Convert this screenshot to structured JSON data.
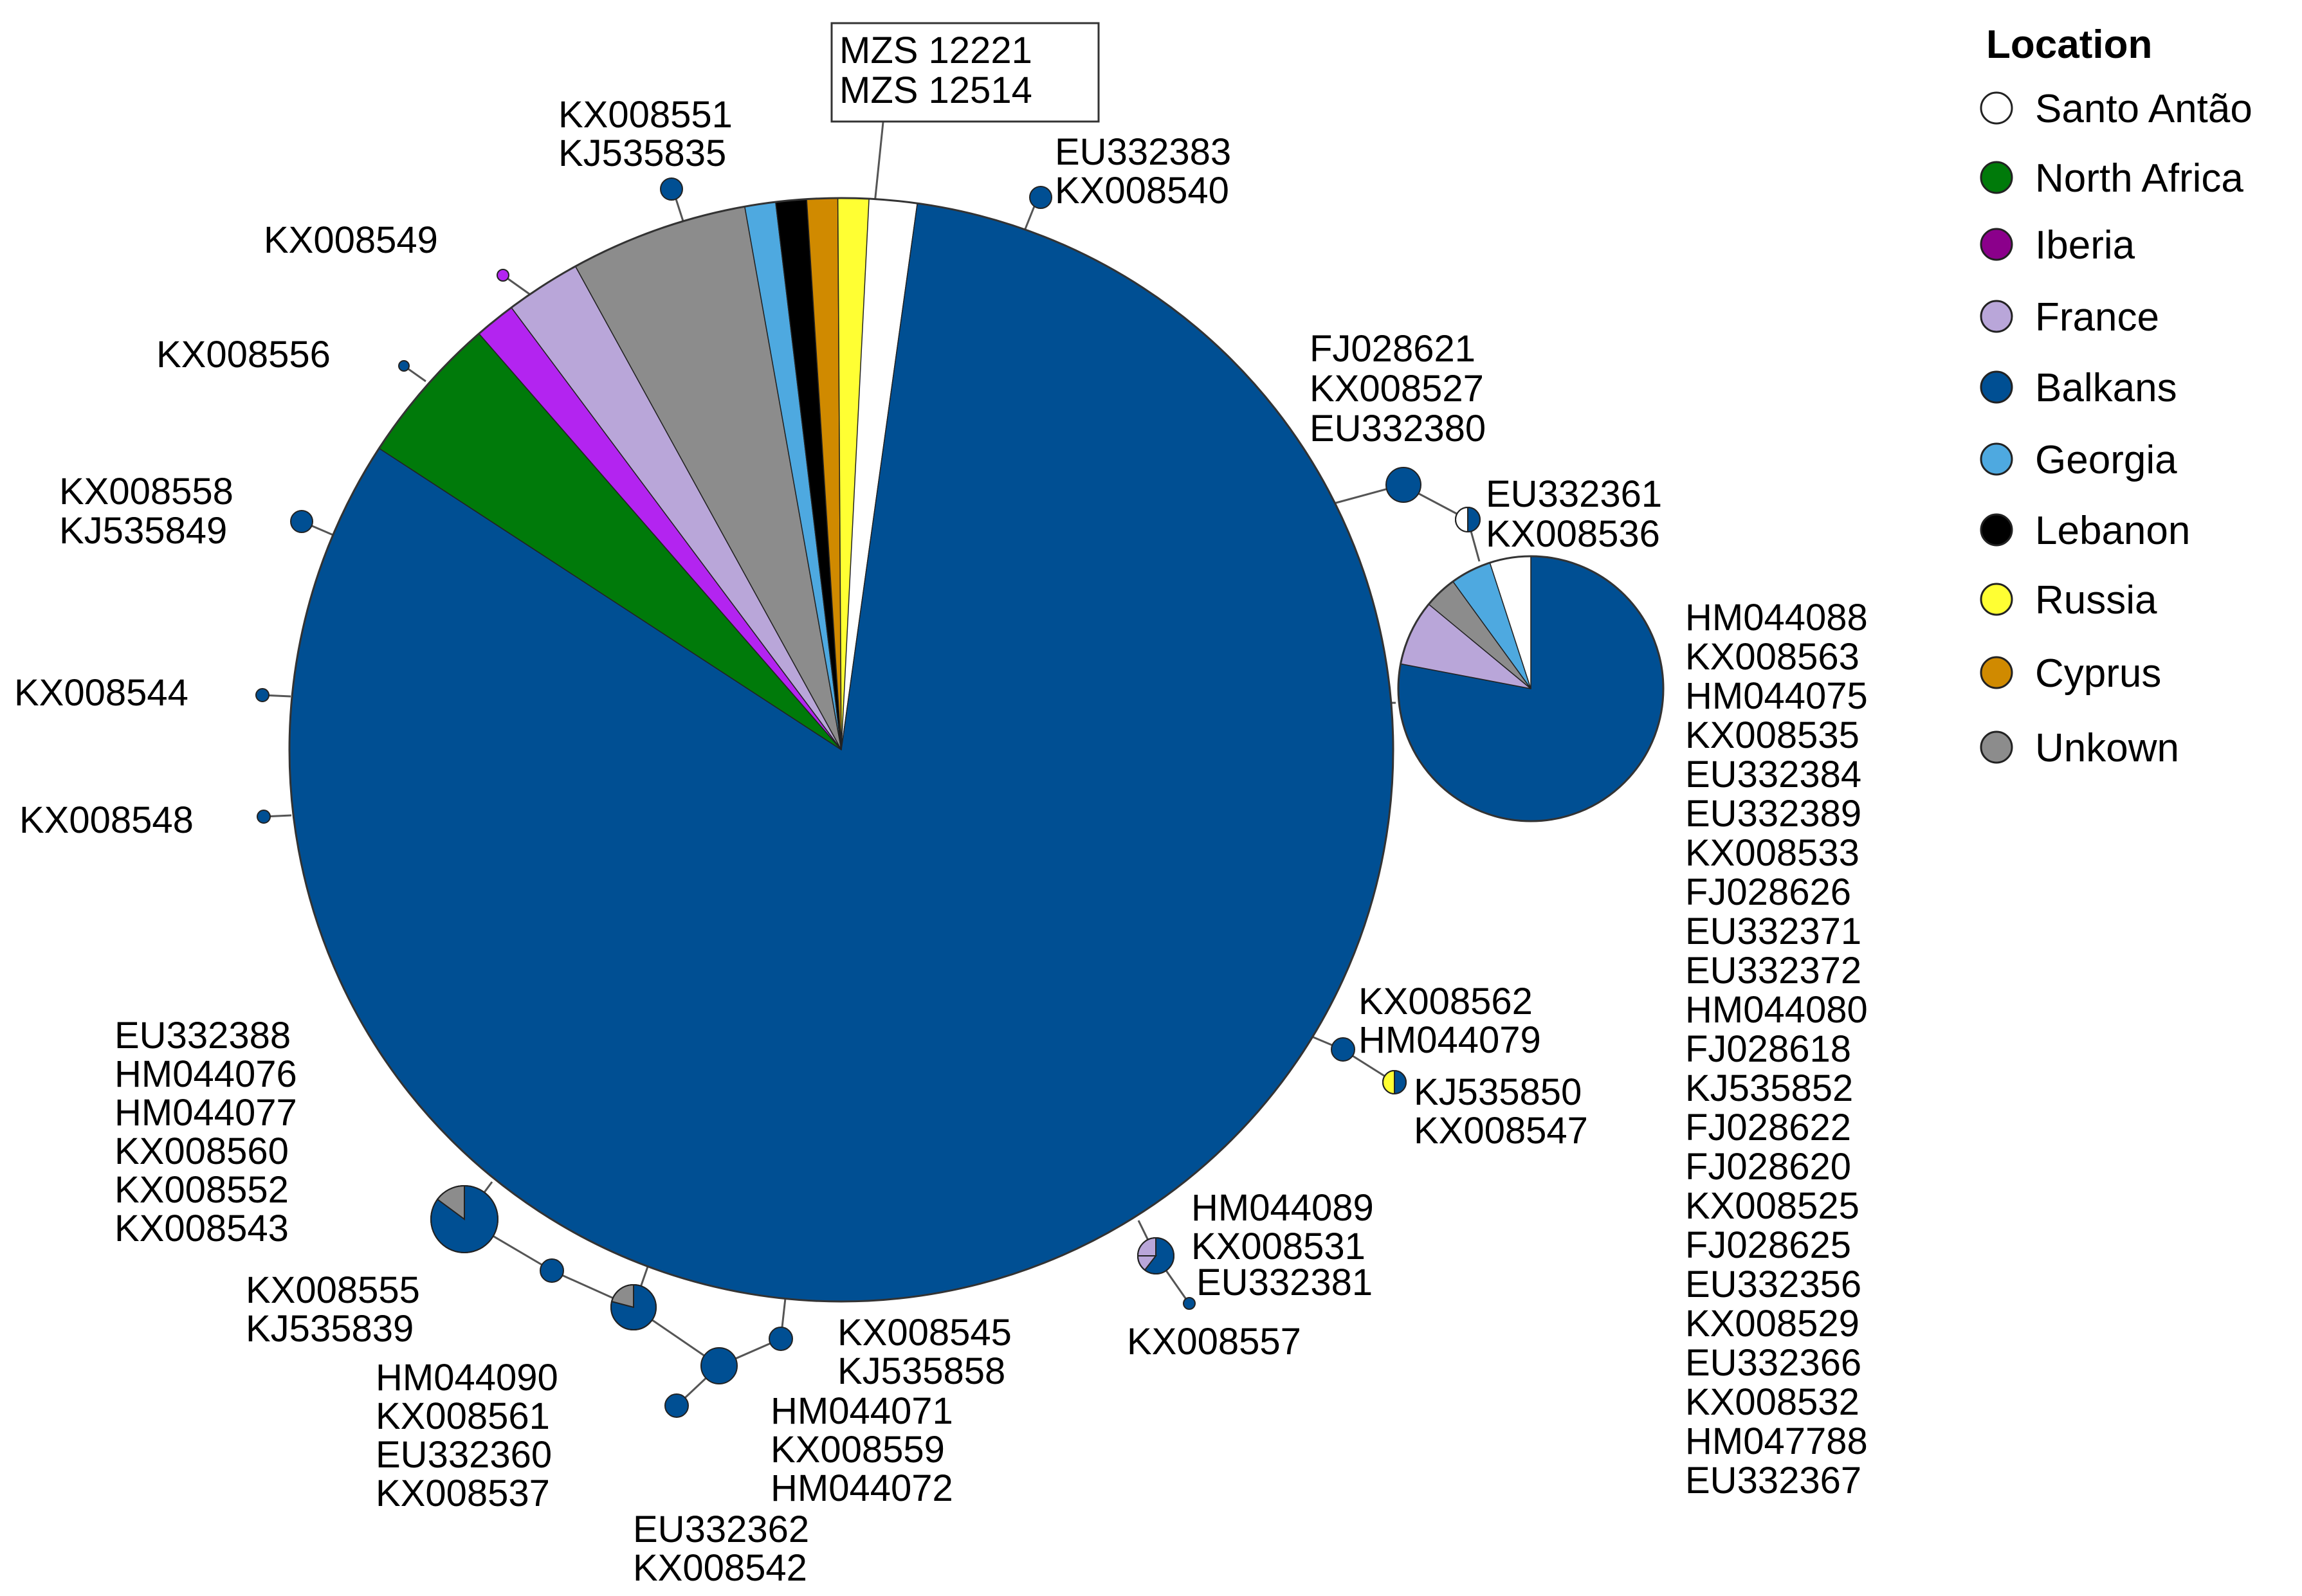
{
  "legend": {
    "title": "Location",
    "items": [
      {
        "key": "santo_antao",
        "label": "Santo Antão",
        "color": "#ffffff"
      },
      {
        "key": "north_africa",
        "label": "North Africa",
        "color": "#007a0a"
      },
      {
        "key": "iberia",
        "label": "Iberia",
        "color": "#8b008b"
      },
      {
        "key": "france",
        "label": "France",
        "color": "#b9a6d9"
      },
      {
        "key": "balkans",
        "label": "Balkans",
        "color": "#004f93"
      },
      {
        "key": "georgia",
        "label": "Georgia",
        "color": "#4ea9e0"
      },
      {
        "key": "lebanon",
        "label": "Lebanon",
        "color": "#000000"
      },
      {
        "key": "russia",
        "label": "Russia",
        "color": "#ffff33"
      },
      {
        "key": "cyprus",
        "label": "Cyprus",
        "color": "#d08a00"
      },
      {
        "key": "unknown",
        "label": "Unkown",
        "color": "#8c8c8c"
      }
    ]
  },
  "pie_colors": {
    "santo_antao": "#ffffff",
    "north_africa": "#007a0a",
    "iberia_slice": "#b324f0",
    "france": "#b9a6d9",
    "balkans": "#004f93",
    "georgia": "#4ea9e0",
    "lebanon": "#000000",
    "russia": "#ffff33",
    "cyprus": "#d08a00",
    "unknown": "#8c8c8c"
  },
  "main_haplotype": {
    "boxed_label": [
      "MZS 12221",
      "MZS 12514"
    ],
    "composition": [
      {
        "location": "santo_antao",
        "fraction": 0.022
      },
      {
        "location": "balkans",
        "fraction": 0.82
      },
      {
        "location": "north_africa",
        "fraction": 0.044
      },
      {
        "location": "iberia_slice",
        "fraction": 0.012
      },
      {
        "location": "france",
        "fraction": 0.022
      },
      {
        "location": "unknown",
        "fraction": 0.052
      },
      {
        "location": "georgia",
        "fraction": 0.009
      },
      {
        "location": "lebanon",
        "fraction": 0.009
      },
      {
        "location": "cyprus",
        "fraction": 0.009
      },
      {
        "location": "russia",
        "fraction": 0.009
      }
    ]
  },
  "second_haplotype": {
    "labels": [
      "HM044088",
      "KX008563",
      "HM044075",
      "KX008535",
      "EU332384",
      "EU332389",
      "KX008533",
      "FJ028626",
      "EU332371",
      "EU332372",
      "HM044080",
      "FJ028618",
      "KJ535852",
      "FJ028622",
      "FJ028620",
      "KX008525",
      "FJ028625",
      "EU332356",
      "KX008529",
      "EU332366",
      "KX008532",
      "HM047788",
      "EU332367"
    ],
    "composition": [
      {
        "location": "balkans",
        "fraction": 0.78
      },
      {
        "location": "france",
        "fraction": 0.08
      },
      {
        "location": "unknown",
        "fraction": 0.04
      },
      {
        "location": "georgia",
        "fraction": 0.05
      },
      {
        "location": "santo_antao",
        "fraction": 0.05
      }
    ]
  },
  "haplotype_labels": {
    "kx008551": [
      "KX008551",
      "KJ535835"
    ],
    "eu332383": [
      "EU332383",
      "KX008540"
    ],
    "kx008549": [
      "KX008549"
    ],
    "kx008556": [
      "KX008556"
    ],
    "kx008558": [
      "KX008558",
      "KJ535849"
    ],
    "kx008544": [
      "KX008544"
    ],
    "kx008548": [
      "KX008548"
    ],
    "fj028621": [
      "FJ028621",
      "KX008527",
      "EU332380"
    ],
    "eu332361": [
      "EU332361",
      "KX008536"
    ],
    "kx008562": [
      "KX008562",
      "HM044079"
    ],
    "kj535850": [
      "KJ535850",
      "KX008547"
    ],
    "hm044089": [
      "HM044089",
      "KX008531",
      "EU332381"
    ],
    "kx008557": [
      "KX008557"
    ],
    "eu332388": [
      "EU332388",
      "HM044076",
      "HM044077",
      "KX008560",
      "KX008552",
      "KX008543"
    ],
    "kx008555": [
      "KX008555",
      "KJ535839"
    ],
    "hm044090": [
      "HM044090",
      "KX008561",
      "EU332360",
      "KX008537"
    ],
    "eu332362": [
      "EU332362",
      "KX008542"
    ],
    "kx008545": [
      "KX008545",
      "KJ535858"
    ],
    "hm044071": [
      "HM044071",
      "KX008559",
      "HM044072"
    ]
  }
}
